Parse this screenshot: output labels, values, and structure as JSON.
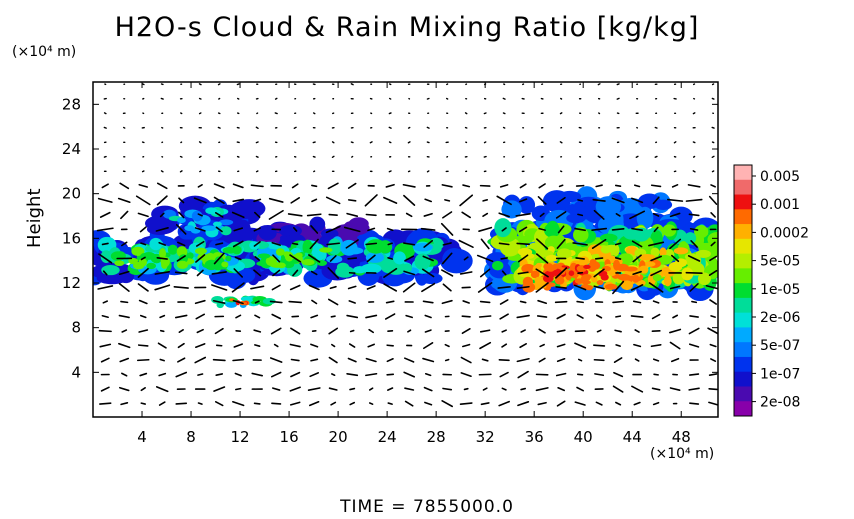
{
  "chart_data": {
    "type": "heatmap",
    "title": "H2O-s Cloud & Rain Mixing Ratio [kg/kg]",
    "ylabel": "Height",
    "x_unit": "(×10⁴ m)",
    "y_unit": "(×10⁴ m)",
    "footer": "TIME  =  7855000.0",
    "xlim": [
      0,
      51
    ],
    "ylim": [
      0,
      30
    ],
    "x_ticks": [
      4,
      8,
      12,
      16,
      20,
      24,
      28,
      32,
      36,
      40,
      44,
      48
    ],
    "y_ticks": [
      4,
      8,
      12,
      16,
      20,
      24,
      28
    ],
    "overlay": "wind vectors",
    "colorbar": {
      "labels": [
        "0.005",
        "0.001",
        "0.0002",
        "5e-05",
        "1e-05",
        "2e-06",
        "5e-07",
        "1e-07",
        "2e-08"
      ],
      "colors": [
        "#ffb3b3",
        "#f06a6a",
        "#ee1010",
        "#ff6a00",
        "#ffb000",
        "#e6e600",
        "#b4ee00",
        "#66ee00",
        "#00dd30",
        "#00dd99",
        "#00e0d8",
        "#00aaff",
        "#0077ff",
        "#0033ee",
        "#1010cc",
        "#4a0ab0",
        "#8800aa"
      ]
    },
    "cloud_regions": [
      {
        "name": "left-cloud-band",
        "x_range": [
          0,
          30
        ],
        "y_range": [
          12,
          19.5
        ]
      },
      {
        "name": "small-cell",
        "x_range": [
          10,
          15
        ],
        "y_range": [
          10,
          11
        ]
      },
      {
        "name": "right-cloud-system",
        "x_range": [
          32,
          51
        ],
        "y_range": [
          11,
          20
        ]
      }
    ]
  }
}
